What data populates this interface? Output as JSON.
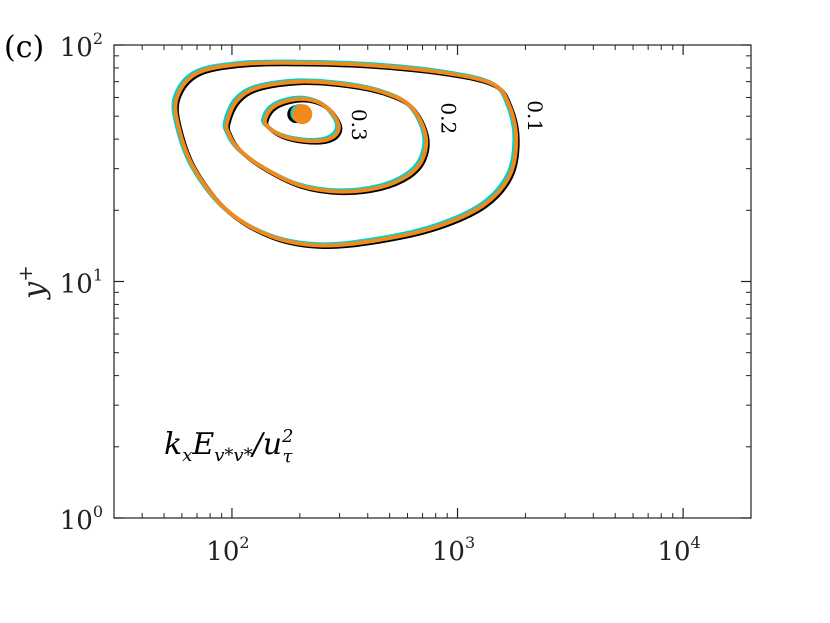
{
  "panel_label": "(c)",
  "chart_data": {
    "type": "contour",
    "xscale": "log",
    "yscale": "log",
    "xlim": [
      30,
      20000
    ],
    "ylim": [
      1,
      100
    ],
    "xticks": [
      100,
      1000,
      10000
    ],
    "xtick_labels": [
      {
        "base": "10",
        "exp": "2"
      },
      {
        "base": "10",
        "exp": "3"
      },
      {
        "base": "10",
        "exp": "4"
      }
    ],
    "yticks": [
      1,
      10,
      100
    ],
    "ytick_labels": [
      {
        "base": "10",
        "exp": "0"
      },
      {
        "base": "10",
        "exp": "1"
      },
      {
        "base": "10",
        "exp": "2"
      }
    ],
    "ylabel": {
      "base": "y",
      "sup": "+"
    },
    "annotation": "kxEv*v*/uτ²",
    "levels": [
      0.1,
      0.2,
      0.3
    ],
    "level_labels": [
      "0.1",
      "0.2",
      "0.3"
    ],
    "series_colors": [
      "#000000",
      "#00d0d0",
      "#f08a1c"
    ],
    "contours": [
      {
        "level": 0.1,
        "points": [
          [
            57,
            60
          ],
          [
            70,
            76
          ],
          [
            110,
            83
          ],
          [
            200,
            84
          ],
          [
            420,
            82
          ],
          [
            900,
            76
          ],
          [
            1450,
            68
          ],
          [
            1700,
            55
          ],
          [
            1820,
            40
          ],
          [
            1700,
            28
          ],
          [
            1300,
            21
          ],
          [
            800,
            17
          ],
          [
            450,
            15
          ],
          [
            250,
            14.2
          ],
          [
            150,
            15.5
          ],
          [
            95,
            20
          ],
          [
            68,
            30
          ],
          [
            58,
            45
          ]
        ]
      },
      {
        "level": 0.2,
        "points": [
          [
            95,
            47
          ],
          [
            105,
            58
          ],
          [
            130,
            66
          ],
          [
            200,
            70
          ],
          [
            320,
            68
          ],
          [
            470,
            63
          ],
          [
            620,
            55
          ],
          [
            720,
            42
          ],
          [
            700,
            33
          ],
          [
            600,
            28
          ],
          [
            450,
            25
          ],
          [
            300,
            24
          ],
          [
            200,
            25.5
          ],
          [
            140,
            30
          ],
          [
            108,
            36
          ],
          [
            97,
            42
          ]
        ]
      },
      {
        "level": 0.3,
        "points": [
          [
            140,
            48
          ],
          [
            150,
            54
          ],
          [
            175,
            58
          ],
          [
            215,
            59
          ],
          [
            260,
            55
          ],
          [
            295,
            47
          ],
          [
            290,
            42
          ],
          [
            255,
            39.5
          ],
          [
            205,
            39.5
          ],
          [
            165,
            41.5
          ],
          [
            145,
            45
          ]
        ]
      }
    ],
    "peak": {
      "x": 205,
      "y": 51
    }
  }
}
